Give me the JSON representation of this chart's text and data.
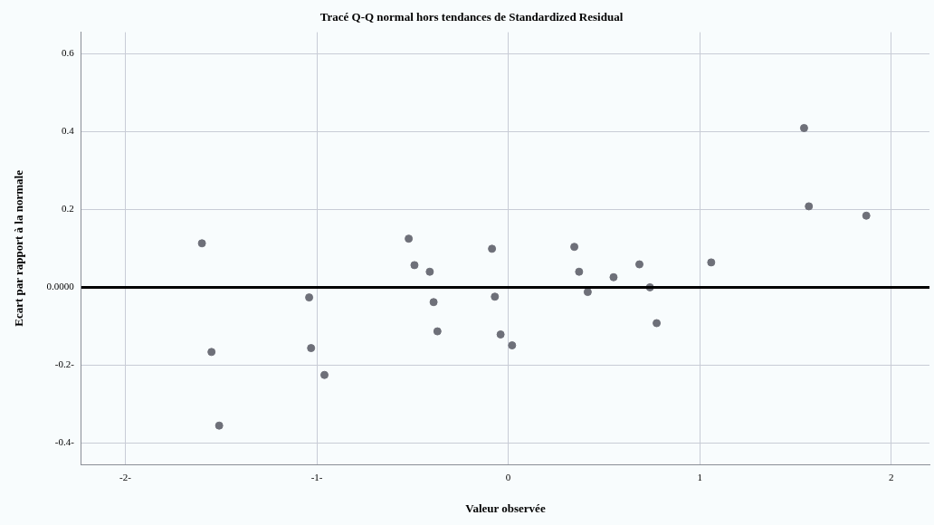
{
  "chart_data": {
    "type": "scatter",
    "title": "Tracé Q-Q normal hors tendances de Standardized Residual",
    "xlabel": "Valeur observée",
    "ylabel": "Ecart par rapport à la normale",
    "x": [
      -1.6,
      -1.55,
      -1.51,
      -1.04,
      -1.03,
      -0.96,
      -0.52,
      -0.49,
      -0.41,
      -0.39,
      -0.37,
      -0.085,
      -0.07,
      -0.04,
      0.02,
      0.345,
      0.37,
      0.415,
      0.55,
      0.685,
      0.74,
      0.775,
      1.06,
      1.545,
      1.57,
      1.87
    ],
    "values": [
      0.113,
      -0.166,
      -0.355,
      -0.026,
      -0.156,
      -0.225,
      0.125,
      0.057,
      0.04,
      -0.038,
      -0.113,
      0.099,
      -0.024,
      -0.121,
      -0.149,
      0.104,
      0.04,
      -0.012,
      0.026,
      0.059,
      0.0,
      -0.092,
      0.064,
      0.409,
      0.208,
      0.184
    ],
    "color": "#6e7079",
    "marker": "circle",
    "xlim": [
      -2.23,
      2.2
    ],
    "xticks": [
      {
        "value": -2,
        "label": "-2-"
      },
      {
        "value": -1,
        "label": "-1-"
      },
      0,
      1,
      2
    ],
    "ylim": [
      -0.455,
      0.655
    ],
    "yticks": [
      {
        "value": -0.4,
        "label": "-0.4-"
      },
      {
        "value": -0.2,
        "label": "-0.2-"
      },
      {
        "value": 0,
        "label": "0.0000"
      },
      0.2,
      0.4,
      0.6
    ],
    "grid": true,
    "ref_lines": [
      {
        "axis": "y",
        "value": 0,
        "color": "#000000",
        "line_style": "solid"
      }
    ]
  }
}
